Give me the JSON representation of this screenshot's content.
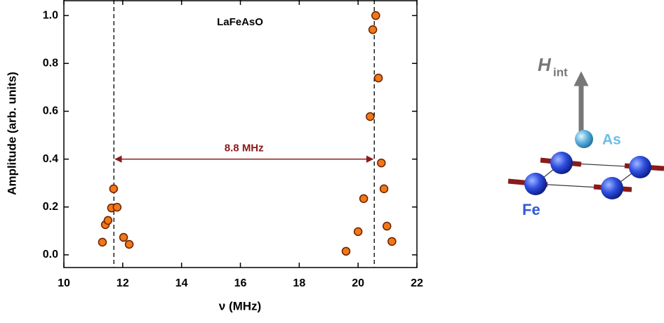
{
  "chart_data": {
    "type": "scatter",
    "title": "LaFeAsO",
    "x_label": "ν (MHz)",
    "y_label": "Amplitude (arb. units)",
    "x": [
      11.31,
      11.41,
      11.5,
      11.62,
      11.69,
      11.81,
      12.03,
      12.22,
      19.59,
      20.0,
      20.19,
      20.41,
      20.5,
      20.6,
      20.69,
      20.79,
      20.88,
      20.98,
      21.15
    ],
    "values": [
      0.053,
      0.126,
      0.144,
      0.196,
      0.276,
      0.199,
      0.073,
      0.044,
      0.015,
      0.097,
      0.235,
      0.578,
      0.941,
      1.0,
      0.739,
      0.384,
      0.276,
      0.12,
      0.056
    ],
    "color": "#f07818",
    "xlim": [
      10,
      22
    ],
    "xticks": [
      10,
      12,
      14,
      16,
      18,
      20,
      22
    ],
    "ylim": [
      -0.053,
      1.065
    ],
    "yticks": [
      {
        "value": 0,
        "label": "0.0"
      },
      {
        "value": 0.2,
        "label": "0.2"
      },
      {
        "value": 0.4,
        "label": "0.4"
      },
      {
        "value": 0.6,
        "label": "0.6"
      },
      {
        "value": 0.8,
        "label": "0.8"
      },
      {
        "value": 1,
        "label": "1.0"
      }
    ],
    "reference_lines": [
      11.7,
      20.55
    ],
    "annotation": {
      "text": "8.8 MHz",
      "y": 0.4,
      "color": "#8b1a1a"
    }
  },
  "diagram": {
    "field_symbol": "H",
    "field_subscript": "int",
    "apical_atom": "As",
    "plane_atom": "Fe"
  }
}
